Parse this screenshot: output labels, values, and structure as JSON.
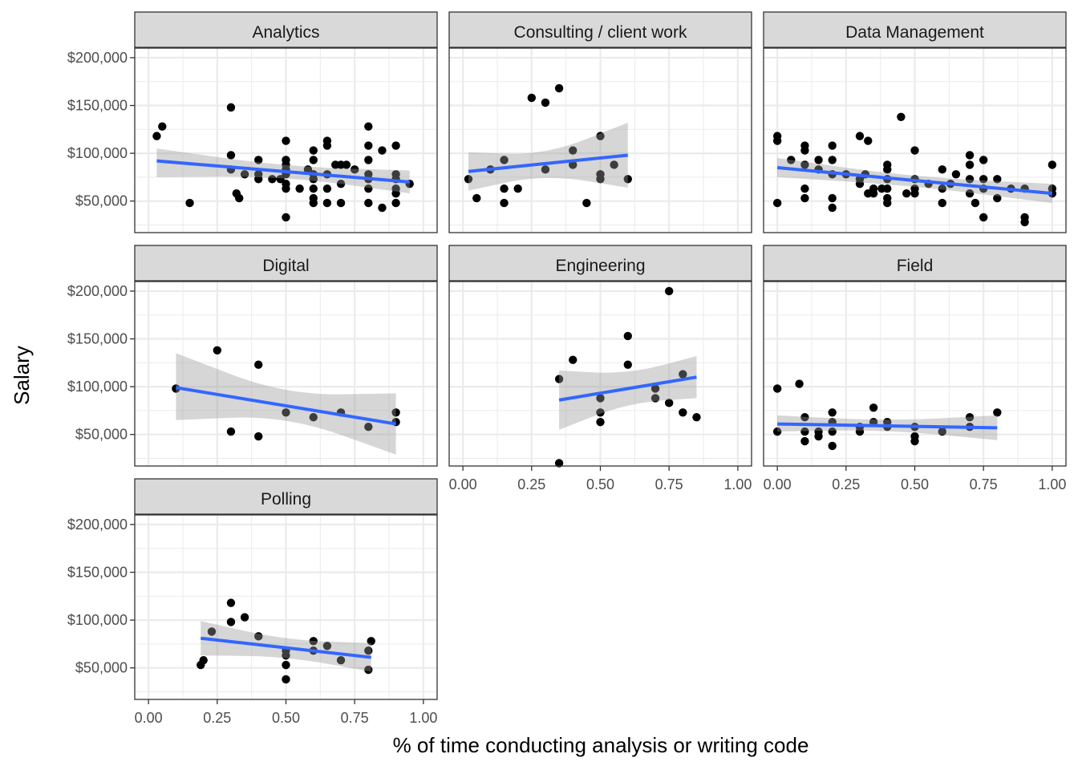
{
  "chart_data": {
    "type": "scatter",
    "facet_layout": "3 columns, 3 rows, shared axes",
    "xlabel": "% of time conducting analysis or writing code",
    "ylabel": "Salary",
    "xlim": [
      -0.05,
      1.05
    ],
    "ylim": [
      17000,
      210000
    ],
    "x_ticks": [
      0,
      0.25,
      0.5,
      0.75,
      1
    ],
    "x_tick_labels": [
      "0.00",
      "0.25",
      "0.50",
      "0.75",
      "1.00"
    ],
    "y_ticks": [
      50000,
      100000,
      150000,
      200000
    ],
    "y_tick_labels": [
      "$50,000",
      "$100,000",
      "$150,000",
      "$200,000"
    ],
    "grid": true,
    "colors": {
      "points": "#000000",
      "fit_line": "#3366ff",
      "confidence_band": "#999999",
      "strip": "#d9d9d9",
      "grid": "#ebebeb",
      "panel_border": "#333333"
    },
    "panels": [
      {
        "label": "Analytics",
        "points": [
          [
            0.03,
            118000
          ],
          [
            0.05,
            128000
          ],
          [
            0.15,
            48000
          ],
          [
            0.3,
            98000
          ],
          [
            0.3,
            148000
          ],
          [
            0.3,
            83000
          ],
          [
            0.32,
            58000
          ],
          [
            0.33,
            53000
          ],
          [
            0.35,
            78000
          ],
          [
            0.4,
            93000
          ],
          [
            0.4,
            73000
          ],
          [
            0.4,
            78000
          ],
          [
            0.45,
            73000
          ],
          [
            0.48,
            73000
          ],
          [
            0.5,
            113000
          ],
          [
            0.5,
            93000
          ],
          [
            0.5,
            88000
          ],
          [
            0.5,
            83000
          ],
          [
            0.5,
            78000
          ],
          [
            0.5,
            68000
          ],
          [
            0.5,
            63000
          ],
          [
            0.5,
            33000
          ],
          [
            0.55,
            63000
          ],
          [
            0.58,
            83000
          ],
          [
            0.6,
            103000
          ],
          [
            0.6,
            93000
          ],
          [
            0.6,
            78000
          ],
          [
            0.6,
            73000
          ],
          [
            0.6,
            63000
          ],
          [
            0.6,
            53000
          ],
          [
            0.6,
            48000
          ],
          [
            0.65,
            113000
          ],
          [
            0.65,
            108000
          ],
          [
            0.65,
            78000
          ],
          [
            0.65,
            63000
          ],
          [
            0.65,
            48000
          ],
          [
            0.68,
            88000
          ],
          [
            0.7,
            88000
          ],
          [
            0.7,
            68000
          ],
          [
            0.7,
            48000
          ],
          [
            0.72,
            88000
          ],
          [
            0.75,
            83000
          ],
          [
            0.8,
            128000
          ],
          [
            0.8,
            108000
          ],
          [
            0.8,
            93000
          ],
          [
            0.8,
            78000
          ],
          [
            0.8,
            73000
          ],
          [
            0.8,
            63000
          ],
          [
            0.8,
            48000
          ],
          [
            0.85,
            103000
          ],
          [
            0.85,
            43000
          ],
          [
            0.9,
            108000
          ],
          [
            0.9,
            78000
          ],
          [
            0.9,
            73000
          ],
          [
            0.9,
            63000
          ],
          [
            0.9,
            58000
          ],
          [
            0.9,
            48000
          ],
          [
            0.95,
            68000
          ]
        ],
        "fit": {
          "x": [
            0.03,
            0.95
          ],
          "y": [
            92000,
            70000
          ]
        },
        "band": {
          "x": [
            0.03,
            0.5,
            0.95
          ],
          "upper": [
            105000,
            86000,
            82000
          ],
          "lower": [
            75000,
            76000,
            58000
          ]
        }
      },
      {
        "label": "Consulting / client work",
        "points": [
          [
            0.02,
            73000
          ],
          [
            0.05,
            53000
          ],
          [
            0.1,
            83000
          ],
          [
            0.15,
            93000
          ],
          [
            0.15,
            63000
          ],
          [
            0.15,
            48000
          ],
          [
            0.2,
            63000
          ],
          [
            0.25,
            158000
          ],
          [
            0.3,
            153000
          ],
          [
            0.3,
            83000
          ],
          [
            0.35,
            168000
          ],
          [
            0.4,
            103000
          ],
          [
            0.4,
            88000
          ],
          [
            0.45,
            48000
          ],
          [
            0.5,
            118000
          ],
          [
            0.5,
            78000
          ],
          [
            0.5,
            73000
          ],
          [
            0.55,
            88000
          ],
          [
            0.6,
            73000
          ]
        ],
        "fit": {
          "x": [
            0.02,
            0.6
          ],
          "y": [
            81000,
            98000
          ]
        },
        "band": {
          "x": [
            0.02,
            0.3,
            0.6
          ],
          "upper": [
            101000,
            98000,
            132000
          ],
          "lower": [
            61000,
            78000,
            64000
          ]
        }
      },
      {
        "label": "Data Management",
        "points": [
          [
            0,
            48000
          ],
          [
            0,
            113000
          ],
          [
            0,
            118000
          ],
          [
            0.05,
            93000
          ],
          [
            0.1,
            108000
          ],
          [
            0.1,
            103000
          ],
          [
            0.1,
            88000
          ],
          [
            0.1,
            63000
          ],
          [
            0.1,
            53000
          ],
          [
            0.15,
            93000
          ],
          [
            0.15,
            83000
          ],
          [
            0.2,
            108000
          ],
          [
            0.2,
            93000
          ],
          [
            0.2,
            78000
          ],
          [
            0.2,
            53000
          ],
          [
            0.2,
            43000
          ],
          [
            0.25,
            78000
          ],
          [
            0.3,
            118000
          ],
          [
            0.3,
            73000
          ],
          [
            0.3,
            68000
          ],
          [
            0.32,
            78000
          ],
          [
            0.33,
            113000
          ],
          [
            0.33,
            58000
          ],
          [
            0.35,
            63000
          ],
          [
            0.35,
            58000
          ],
          [
            0.38,
            63000
          ],
          [
            0.4,
            88000
          ],
          [
            0.4,
            83000
          ],
          [
            0.4,
            73000
          ],
          [
            0.4,
            63000
          ],
          [
            0.4,
            53000
          ],
          [
            0.4,
            48000
          ],
          [
            0.45,
            138000
          ],
          [
            0.47,
            58000
          ],
          [
            0.5,
            103000
          ],
          [
            0.5,
            73000
          ],
          [
            0.5,
            63000
          ],
          [
            0.5,
            58000
          ],
          [
            0.55,
            68000
          ],
          [
            0.6,
            83000
          ],
          [
            0.6,
            63000
          ],
          [
            0.6,
            48000
          ],
          [
            0.63,
            68000
          ],
          [
            0.65,
            78000
          ],
          [
            0.7,
            98000
          ],
          [
            0.7,
            88000
          ],
          [
            0.7,
            73000
          ],
          [
            0.7,
            58000
          ],
          [
            0.72,
            48000
          ],
          [
            0.75,
            93000
          ],
          [
            0.75,
            73000
          ],
          [
            0.75,
            63000
          ],
          [
            0.75,
            33000
          ],
          [
            0.8,
            73000
          ],
          [
            0.8,
            53000
          ],
          [
            0.85,
            63000
          ],
          [
            0.9,
            63000
          ],
          [
            0.9,
            33000
          ],
          [
            0.9,
            28000
          ],
          [
            1.0,
            88000
          ],
          [
            1.0,
            63000
          ],
          [
            1.0,
            58000
          ]
        ],
        "fit": {
          "x": [
            0,
            1
          ],
          "y": [
            85000,
            58000
          ]
        },
        "band": {
          "x": [
            0,
            0.5,
            1
          ],
          "upper": [
            95000,
            75000,
            68000
          ],
          "lower": [
            75000,
            66000,
            48000
          ]
        }
      },
      {
        "label": "Digital",
        "points": [
          [
            0.1,
            98000
          ],
          [
            0.25,
            138000
          ],
          [
            0.3,
            53000
          ],
          [
            0.4,
            123000
          ],
          [
            0.4,
            48000
          ],
          [
            0.5,
            73000
          ],
          [
            0.6,
            68000
          ],
          [
            0.7,
            73000
          ],
          [
            0.8,
            58000
          ],
          [
            0.9,
            73000
          ],
          [
            0.9,
            63000
          ]
        ],
        "fit": {
          "x": [
            0.1,
            0.9
          ],
          "y": [
            99000,
            61000
          ]
        },
        "band": {
          "x": [
            0.1,
            0.5,
            0.9
          ],
          "upper": [
            135000,
            91000,
            93000
          ],
          "lower": [
            65000,
            70000,
            29000
          ]
        }
      },
      {
        "label": "Engineering",
        "points": [
          [
            0.35,
            108000
          ],
          [
            0.35,
            20000
          ],
          [
            0.4,
            128000
          ],
          [
            0.5,
            88000
          ],
          [
            0.5,
            73000
          ],
          [
            0.5,
            63000
          ],
          [
            0.6,
            153000
          ],
          [
            0.6,
            123000
          ],
          [
            0.7,
            98000
          ],
          [
            0.7,
            88000
          ],
          [
            0.75,
            200000
          ],
          [
            0.75,
            83000
          ],
          [
            0.8,
            113000
          ],
          [
            0.8,
            73000
          ],
          [
            0.85,
            68000
          ]
        ],
        "fit": {
          "x": [
            0.35,
            0.85
          ],
          "y": [
            86000,
            110000
          ]
        },
        "band": {
          "x": [
            0.35,
            0.6,
            0.85
          ],
          "upper": [
            117000,
            113000,
            132000
          ],
          "lower": [
            55000,
            83000,
            88000
          ]
        }
      },
      {
        "label": "Field",
        "points": [
          [
            0,
            98000
          ],
          [
            0,
            53000
          ],
          [
            0.08,
            103000
          ],
          [
            0.1,
            68000
          ],
          [
            0.1,
            53000
          ],
          [
            0.1,
            43000
          ],
          [
            0.15,
            53000
          ],
          [
            0.15,
            48000
          ],
          [
            0.2,
            73000
          ],
          [
            0.2,
            63000
          ],
          [
            0.2,
            53000
          ],
          [
            0.2,
            38000
          ],
          [
            0.3,
            58000
          ],
          [
            0.3,
            53000
          ],
          [
            0.35,
            78000
          ],
          [
            0.35,
            63000
          ],
          [
            0.4,
            58000
          ],
          [
            0.4,
            63000
          ],
          [
            0.5,
            58000
          ],
          [
            0.5,
            48000
          ],
          [
            0.5,
            43000
          ],
          [
            0.6,
            53000
          ],
          [
            0.7,
            68000
          ],
          [
            0.7,
            58000
          ],
          [
            0.8,
            73000
          ]
        ],
        "fit": {
          "x": [
            0,
            0.8
          ],
          "y": [
            61000,
            57000
          ]
        },
        "band": {
          "x": [
            0,
            0.4,
            0.8
          ],
          "upper": [
            70000,
            64000,
            70000
          ],
          "lower": [
            53000,
            55000,
            44000
          ]
        }
      },
      {
        "label": "Polling",
        "points": [
          [
            0.19,
            53000
          ],
          [
            0.2,
            58000
          ],
          [
            0.23,
            88000
          ],
          [
            0.3,
            118000
          ],
          [
            0.3,
            98000
          ],
          [
            0.35,
            103000
          ],
          [
            0.4,
            83000
          ],
          [
            0.5,
            68000
          ],
          [
            0.5,
            63000
          ],
          [
            0.5,
            53000
          ],
          [
            0.5,
            38000
          ],
          [
            0.6,
            78000
          ],
          [
            0.6,
            68000
          ],
          [
            0.65,
            73000
          ],
          [
            0.7,
            58000
          ],
          [
            0.8,
            68000
          ],
          [
            0.8,
            48000
          ],
          [
            0.81,
            78000
          ]
        ],
        "fit": {
          "x": [
            0.19,
            0.81
          ],
          "y": [
            81000,
            61000
          ]
        },
        "band": {
          "x": [
            0.19,
            0.5,
            0.81
          ],
          "upper": [
            99000,
            79000,
            76000
          ],
          "lower": [
            63000,
            62000,
            46000
          ]
        }
      }
    ]
  }
}
